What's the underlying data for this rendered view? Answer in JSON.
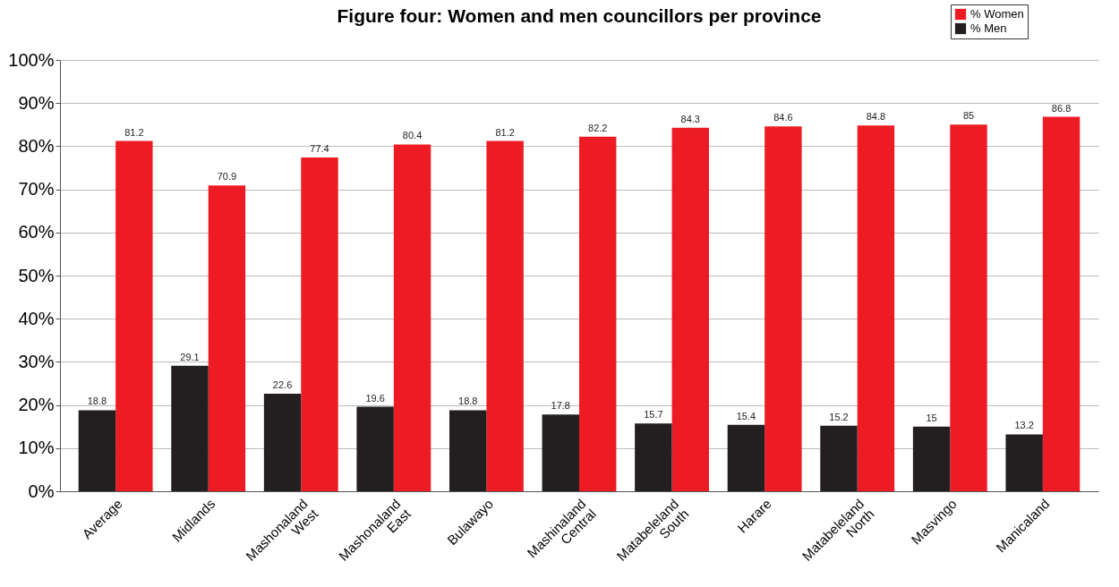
{
  "chart_data": {
    "type": "bar",
    "title": "Figure four: Women and men councillors per province",
    "categories": [
      "Average",
      "Midlands",
      "Mashonaland West",
      "Mashonaland East",
      "Bulawayo",
      "Mashinaland Central",
      "Matabeleland South",
      "Harare",
      "Matabeleland North",
      "Masvingo",
      "Manicaland"
    ],
    "series": [
      {
        "name": "% Women",
        "color": "#ed1c24",
        "values": [
          81.2,
          70.9,
          77.4,
          80.4,
          81.2,
          82.2,
          84.3,
          84.6,
          84.8,
          85,
          86.8
        ]
      },
      {
        "name": "% Men",
        "color": "#231f20",
        "values": [
          18.8,
          29.1,
          22.6,
          19.6,
          18.8,
          17.8,
          15.7,
          15.4,
          15.2,
          15,
          13.2
        ]
      }
    ],
    "ylim": [
      0,
      100
    ],
    "yticks": [
      {
        "value": 0,
        "label": "0%"
      },
      {
        "value": 10,
        "label": "10%"
      },
      {
        "value": 20,
        "label": "20%"
      },
      {
        "value": 30,
        "label": "30%"
      },
      {
        "value": 40,
        "label": "40%"
      },
      {
        "value": 50,
        "label": "50%"
      },
      {
        "value": 60,
        "label": "60%"
      },
      {
        "value": 70,
        "label": "70%"
      },
      {
        "value": 80,
        "label": "80%"
      },
      {
        "value": 90,
        "label": "90%"
      },
      {
        "value": 100,
        "label": "100%"
      }
    ],
    "grid": "y",
    "legend": "top right",
    "data_labels": true
  }
}
